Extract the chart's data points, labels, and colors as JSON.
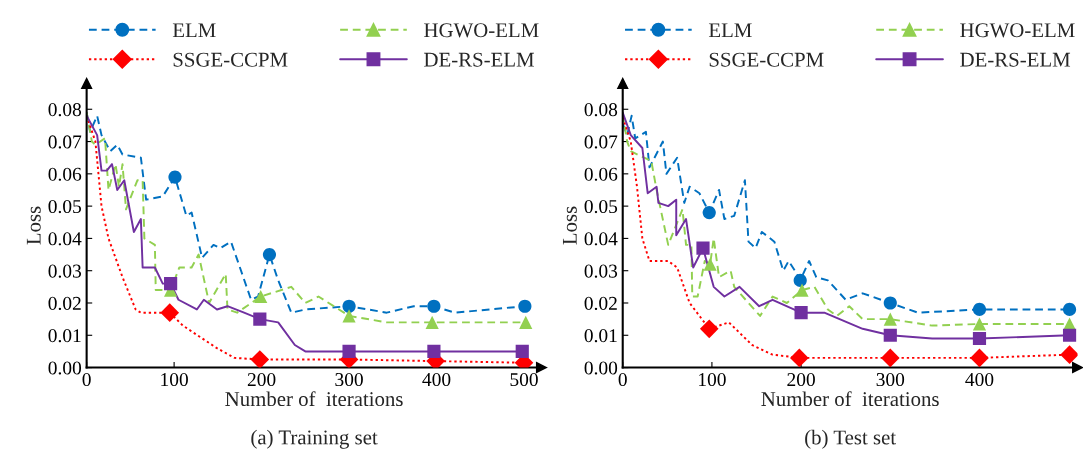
{
  "chart_data": [
    {
      "type": "line",
      "title": "(a) Training set",
      "xlabel": "Number of  iterations",
      "ylabel": "Loss",
      "xlim": [
        0,
        520
      ],
      "xticks": [
        0,
        100,
        200,
        300,
        400,
        500
      ],
      "ylim": [
        0,
        0.088
      ],
      "yticks": [
        {
          "value": 0,
          "label": "0.00"
        },
        {
          "value": 0.01,
          "label": "0.01"
        },
        {
          "value": 0.02,
          "label": "0.02"
        },
        {
          "value": 0.03,
          "label": "0.03"
        },
        {
          "value": 0.04,
          "label": "0.04"
        },
        {
          "value": 0.05,
          "label": "0.05"
        },
        {
          "value": 0.06,
          "label": "0.06"
        },
        {
          "value": 0.07,
          "label": "0.07"
        },
        {
          "value": 0.08,
          "label": "0.08"
        }
      ],
      "grid": false,
      "legend": "top",
      "series": [
        {
          "name": "ELM",
          "color": "#0070c0",
          "line_style": "dashed",
          "x": [
            0,
            4,
            12,
            17,
            27,
            35,
            41,
            62,
            68,
            87,
            101,
            114,
            120,
            132,
            145,
            153,
            165,
            188,
            196,
            209,
            219,
            234,
            250,
            300,
            343,
            374,
            397,
            421,
            501
          ],
          "values": [
            0.079,
            0.073,
            0.078,
            0.072,
            0.067,
            0.069,
            0.066,
            0.065,
            0.052,
            0.053,
            0.059,
            0.047,
            0.048,
            0.034,
            0.038,
            0.037,
            0.039,
            0.021,
            0.022,
            0.035,
            0.027,
            0.017,
            0.018,
            0.019,
            0.017,
            0.019,
            0.019,
            0.017,
            0.019
          ]
        },
        {
          "name": "HGWO-ELM",
          "color": "#92d050",
          "line_style": "dashed",
          "x": [
            0,
            6,
            10,
            21,
            25,
            33,
            37,
            41,
            45,
            58,
            64,
            66,
            78,
            79,
            96,
            106,
            120,
            128,
            140,
            159,
            161,
            172,
            199,
            234,
            250,
            265,
            300,
            343,
            395,
            502
          ],
          "values": [
            0.079,
            0.07,
            0.069,
            0.071,
            0.055,
            0.063,
            0.056,
            0.063,
            0.049,
            0.058,
            0.058,
            0.04,
            0.038,
            0.024,
            0.024,
            0.031,
            0.031,
            0.035,
            0.02,
            0.029,
            0.018,
            0.017,
            0.022,
            0.025,
            0.02,
            0.022,
            0.016,
            0.014,
            0.014,
            0.014
          ]
        },
        {
          "name": "SSGE-CCPM",
          "color": "#ff0000",
          "line_style": "dotted",
          "x": [
            0,
            10,
            17,
            25,
            41,
            56,
            62,
            95,
            110,
            149,
            169,
            198,
            300,
            399,
            500
          ],
          "values": [
            0.078,
            0.07,
            0.05,
            0.04,
            0.028,
            0.018,
            0.017,
            0.017,
            0.013,
            0.006,
            0.003,
            0.0025,
            0.0025,
            0.002,
            0.0015
          ]
        },
        {
          "name": "DE-RS-ELM",
          "color": "#7030a0",
          "line_style": "solid",
          "x": [
            0,
            12,
            17,
            23,
            29,
            35,
            43,
            54,
            62,
            64,
            78,
            87,
            96,
            105,
            126,
            134,
            149,
            161,
            180,
            198,
            219,
            238,
            250,
            300,
            397,
            498
          ],
          "values": [
            0.078,
            0.072,
            0.061,
            0.061,
            0.063,
            0.055,
            0.058,
            0.042,
            0.046,
            0.031,
            0.031,
            0.026,
            0.026,
            0.021,
            0.018,
            0.021,
            0.018,
            0.019,
            0.017,
            0.015,
            0.014,
            0.007,
            0.005,
            0.005,
            0.005,
            0.005
          ]
        },
        {
          "type": "scatter",
          "color": "#0070c0",
          "marker": "circle",
          "x": [
            101,
            209,
            300,
            397,
            501
          ],
          "values": [
            0.059,
            0.035,
            0.019,
            0.019,
            0.019
          ]
        },
        {
          "type": "scatter",
          "color": "#92d050",
          "marker": "triangle",
          "x": [
            96,
            199,
            300,
            395,
            502
          ],
          "values": [
            0.024,
            0.022,
            0.016,
            0.014,
            0.014
          ]
        },
        {
          "type": "scatter",
          "color": "#ff0000",
          "marker": "diamond",
          "x": [
            95,
            198,
            300,
            399,
            500
          ],
          "values": [
            0.017,
            0.0025,
            0.0025,
            0.002,
            0.0015
          ]
        },
        {
          "type": "scatter",
          "color": "#7030a0",
          "marker": "square",
          "x": [
            96,
            198,
            300,
            397,
            498
          ],
          "values": [
            0.026,
            0.015,
            0.005,
            0.005,
            0.005
          ]
        }
      ]
    },
    {
      "type": "line",
      "title": "(b) Test set",
      "xlabel": "Number of  iterations",
      "ylabel": "Loss",
      "xlim": [
        0,
        510
      ],
      "xticks": [
        0,
        100,
        200,
        300,
        400
      ],
      "ylim": [
        0,
        0.088
      ],
      "yticks": [
        {
          "value": 0,
          "label": "0.00"
        },
        {
          "value": 0.01,
          "label": "0.01"
        },
        {
          "value": 0.02,
          "label": "0.02"
        },
        {
          "value": 0.03,
          "label": "0.03"
        },
        {
          "value": 0.04,
          "label": "0.04"
        },
        {
          "value": 0.05,
          "label": "0.05"
        },
        {
          "value": 0.06,
          "label": "0.06"
        },
        {
          "value": 0.07,
          "label": "0.07"
        },
        {
          "value": 0.08,
          "label": "0.08"
        }
      ],
      "grid": false,
      "legend": "top",
      "series": [
        {
          "name": "ELM",
          "color": "#0070c0",
          "line_style": "dashed",
          "x": [
            0,
            5,
            10,
            14,
            26,
            30,
            45,
            49,
            61,
            69,
            75,
            86,
            97,
            108,
            114,
            125,
            137,
            141,
            149,
            156,
            170,
            180,
            186,
            193,
            199,
            209,
            217,
            230,
            250,
            269,
            300,
            331,
            400,
            444,
            501
          ],
          "values": [
            0.0755,
            0.072,
            0.078,
            0.071,
            0.073,
            0.062,
            0.07,
            0.06,
            0.065,
            0.051,
            0.056,
            0.054,
            0.048,
            0.055,
            0.046,
            0.047,
            0.058,
            0.039,
            0.037,
            0.042,
            0.039,
            0.03,
            0.033,
            0.03,
            0.027,
            0.033,
            0.028,
            0.027,
            0.021,
            0.023,
            0.02,
            0.017,
            0.018,
            0.018,
            0.018
          ]
        },
        {
          "name": "HGWO-ELM",
          "color": "#92d050",
          "line_style": "dashed",
          "x": [
            0,
            5,
            9,
            24,
            32,
            38,
            51,
            67,
            71,
            77,
            78,
            84,
            92,
            98,
            102,
            108,
            121,
            125,
            141,
            154,
            168,
            184,
            201,
            215,
            230,
            240,
            254,
            269,
            300,
            347,
            400,
            501
          ],
          "values": [
            0.0785,
            0.07,
            0.067,
            0.065,
            0.064,
            0.055,
            0.038,
            0.049,
            0.038,
            0.038,
            0.022,
            0.022,
            0.033,
            0.032,
            0.04,
            0.028,
            0.03,
            0.025,
            0.02,
            0.016,
            0.022,
            0.02,
            0.024,
            0.025,
            0.018,
            0.016,
            0.019,
            0.015,
            0.015,
            0.013,
            0.0135,
            0.0135
          ]
        },
        {
          "name": "SSGE-CCPM",
          "color": "#ff0000",
          "line_style": "dotted",
          "x": [
            0,
            9,
            16,
            22,
            30,
            51,
            61,
            75,
            97,
            119,
            145,
            168,
            198,
            300,
            400,
            501
          ],
          "values": [
            0.0775,
            0.07,
            0.056,
            0.04,
            0.033,
            0.033,
            0.031,
            0.02,
            0.012,
            0.014,
            0.007,
            0.004,
            0.003,
            0.003,
            0.003,
            0.004
          ]
        },
        {
          "name": "DE-RS-ELM",
          "color": "#7030a0",
          "line_style": "solid",
          "x": [
            0,
            9,
            22,
            28,
            38,
            40,
            51,
            60,
            60,
            71,
            79,
            90,
            102,
            114,
            131,
            153,
            168,
            200,
            226,
            269,
            300,
            347,
            400,
            501
          ],
          "values": [
            0.079,
            0.072,
            0.068,
            0.054,
            0.056,
            0.051,
            0.05,
            0.052,
            0.041,
            0.046,
            0.031,
            0.037,
            0.025,
            0.022,
            0.025,
            0.019,
            0.021,
            0.017,
            0.017,
            0.012,
            0.01,
            0.009,
            0.009,
            0.01
          ]
        },
        {
          "type": "scatter",
          "color": "#0070c0",
          "marker": "circle",
          "x": [
            97,
            199,
            300,
            400,
            501
          ],
          "values": [
            0.048,
            0.027,
            0.02,
            0.018,
            0.018
          ]
        },
        {
          "type": "scatter",
          "color": "#92d050",
          "marker": "triangle",
          "x": [
            98,
            201,
            300,
            400,
            501
          ],
          "values": [
            0.032,
            0.024,
            0.015,
            0.0135,
            0.0135
          ]
        },
        {
          "type": "scatter",
          "color": "#ff0000",
          "marker": "diamond",
          "x": [
            97,
            198,
            300,
            400,
            501
          ],
          "values": [
            0.012,
            0.003,
            0.003,
            0.003,
            0.004
          ]
        },
        {
          "type": "scatter",
          "color": "#7030a0",
          "marker": "square",
          "x": [
            90,
            200,
            300,
            400,
            501
          ],
          "values": [
            0.037,
            0.017,
            0.01,
            0.009,
            0.01
          ]
        }
      ]
    }
  ]
}
